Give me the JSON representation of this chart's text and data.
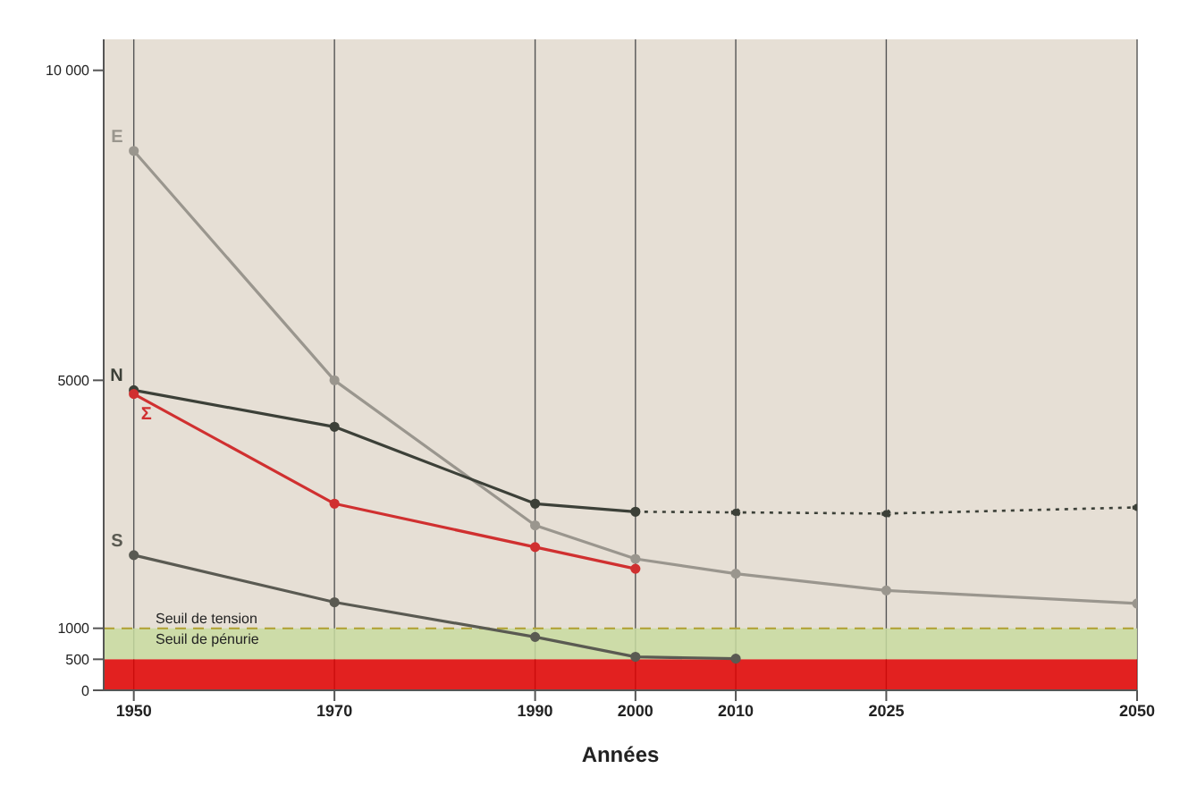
{
  "chart_data": {
    "type": "line",
    "xlabel": "Années",
    "x": [
      1950,
      1970,
      1990,
      2000,
      2010,
      2025,
      2050
    ],
    "xlim": [
      1947,
      2050
    ],
    "xticks": [
      1950,
      1970,
      1990,
      2000,
      2010,
      2025,
      2050
    ],
    "ylim": [
      0,
      10500
    ],
    "yticks": [
      0,
      500,
      1000,
      5000,
      {
        "value": 10000,
        "label": "10 000"
      }
    ],
    "series": [
      {
        "name": "E",
        "color": "#9a968e",
        "values": [
          8700,
          5000,
          2660,
          2120,
          1880,
          1610,
          1400
        ]
      },
      {
        "name": "N",
        "color": "#3c4038",
        "values": [
          4840,
          4250,
          3010,
          2880,
          null,
          null,
          null
        ]
      },
      {
        "color": "#3c4038",
        "line_style": "dotted",
        "values": [
          null,
          null,
          null,
          2880,
          2870,
          2850,
          2950
        ]
      },
      {
        "name": "Σ",
        "color": "#d03030",
        "values": [
          4780,
          3010,
          2310,
          1960,
          null,
          null,
          null
        ]
      },
      {
        "name": "S",
        "color": "#5a5a52",
        "values": [
          2180,
          1420,
          860,
          540,
          510,
          null,
          null
        ]
      }
    ],
    "bands": [
      {
        "axis": "y",
        "from": 0,
        "to": 500,
        "color": "#e00000"
      },
      {
        "axis": "y",
        "from": 500,
        "to": 1000,
        "color": "#c8dca0",
        "label": "Seuil de pénurie"
      }
    ],
    "ref_lines": [
      {
        "axis": "y",
        "value": 1000,
        "label": "Seuil de tension",
        "color": "#b0a030",
        "line_style": "dashed"
      }
    ],
    "grid": "x",
    "marker": "circle",
    "line_style": "solid"
  }
}
